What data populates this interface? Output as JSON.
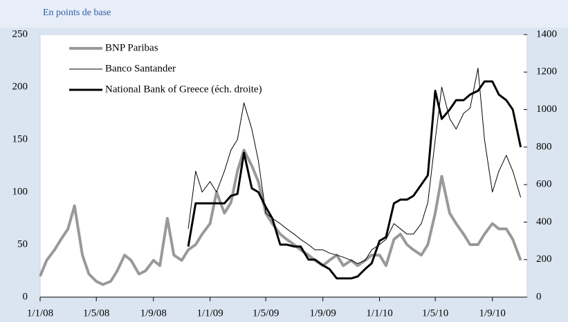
{
  "chart_data": {
    "type": "line",
    "title": "En points de base",
    "xlim": [
      "2008-01-01",
      "2010-11-15"
    ],
    "xticks": [
      {
        "value": "2008-01-01",
        "label": "1/1/08"
      },
      {
        "value": "2008-05-01",
        "label": "1/5/08"
      },
      {
        "value": "2008-09-01",
        "label": "1/9/08"
      },
      {
        "value": "2009-01-01",
        "label": "1/1/09"
      },
      {
        "value": "2009-05-01",
        "label": "1/5/09"
      },
      {
        "value": "2009-09-01",
        "label": "1/9/09"
      },
      {
        "value": "2010-01-01",
        "label": "1/1/10"
      },
      {
        "value": "2010-05-01",
        "label": "1/5/10"
      },
      {
        "value": "2010-09-01",
        "label": "1/9/10"
      }
    ],
    "ylim": [
      0,
      250
    ],
    "yticks": [
      0,
      50,
      100,
      150,
      200,
      250
    ],
    "y2lim": [
      0,
      1400
    ],
    "y2ticks": [
      0,
      200,
      400,
      600,
      800,
      1000,
      1200,
      1400
    ],
    "legend": "upper left",
    "series": [
      {
        "name": "BNP Paribas",
        "color": "#999999",
        "width": 4,
        "x": [
          "2008-01-01",
          "2008-01-15",
          "2008-02-01",
          "2008-02-15",
          "2008-03-01",
          "2008-03-15",
          "2008-04-01",
          "2008-04-15",
          "2008-05-01",
          "2008-05-15",
          "2008-06-01",
          "2008-06-15",
          "2008-07-01",
          "2008-07-15",
          "2008-08-01",
          "2008-08-15",
          "2008-09-01",
          "2008-09-15",
          "2008-10-01",
          "2008-10-15",
          "2008-11-01",
          "2008-11-15",
          "2008-12-01",
          "2008-12-15",
          "2009-01-01",
          "2009-01-15",
          "2009-02-01",
          "2009-02-15",
          "2009-03-01",
          "2009-03-15",
          "2009-04-01",
          "2009-04-15",
          "2009-05-01",
          "2009-05-15",
          "2009-06-01",
          "2009-06-15",
          "2009-07-01",
          "2009-07-15",
          "2009-08-01",
          "2009-08-15",
          "2009-09-01",
          "2009-09-15",
          "2009-10-01",
          "2009-10-15",
          "2009-11-01",
          "2009-11-15",
          "2009-12-01",
          "2009-12-15",
          "2010-01-01",
          "2010-01-15",
          "2010-02-01",
          "2010-02-15",
          "2010-03-01",
          "2010-03-15",
          "2010-04-01",
          "2010-04-15",
          "2010-05-01",
          "2010-05-15",
          "2010-06-01",
          "2010-06-15",
          "2010-07-01",
          "2010-07-15",
          "2010-08-01",
          "2010-08-15",
          "2010-09-01",
          "2010-09-15",
          "2010-10-01",
          "2010-10-15",
          "2010-11-01"
        ],
        "values": [
          20,
          35,
          45,
          55,
          65,
          87,
          40,
          22,
          15,
          12,
          15,
          25,
          40,
          35,
          22,
          25,
          35,
          30,
          75,
          40,
          35,
          45,
          50,
          60,
          70,
          100,
          80,
          90,
          120,
          140,
          125,
          110,
          80,
          70,
          60,
          55,
          50,
          45,
          40,
          35,
          30,
          35,
          40,
          30,
          35,
          30,
          35,
          40,
          40,
          30,
          55,
          60,
          50,
          45,
          40,
          50,
          80,
          115,
          80,
          70,
          60,
          50,
          50,
          60,
          70,
          65,
          65,
          55,
          35
        ]
      },
      {
        "name": "Banco Santander",
        "color": "#000000",
        "width": 1,
        "x": [
          "2008-11-15",
          "2008-12-01",
          "2008-12-15",
          "2009-01-01",
          "2009-01-15",
          "2009-02-01",
          "2009-02-15",
          "2009-03-01",
          "2009-03-15",
          "2009-04-01",
          "2009-04-15",
          "2009-05-01",
          "2009-05-15",
          "2009-06-01",
          "2009-06-15",
          "2009-07-01",
          "2009-07-15",
          "2009-08-01",
          "2009-08-15",
          "2009-09-01",
          "2009-09-15",
          "2009-10-01",
          "2009-10-15",
          "2009-11-01",
          "2009-11-15",
          "2009-12-01",
          "2009-12-15",
          "2010-01-01",
          "2010-01-15",
          "2010-02-01",
          "2010-02-15",
          "2010-03-01",
          "2010-03-15",
          "2010-04-01",
          "2010-04-15",
          "2010-05-01",
          "2010-05-15",
          "2010-06-01",
          "2010-06-15",
          "2010-07-01",
          "2010-07-15",
          "2010-08-01",
          "2010-08-15",
          "2010-09-01",
          "2010-09-15",
          "2010-10-01",
          "2010-10-15",
          "2010-11-01"
        ],
        "values": [
          65,
          120,
          100,
          110,
          100,
          120,
          140,
          150,
          185,
          160,
          130,
          80,
          75,
          70,
          65,
          60,
          55,
          50,
          45,
          45,
          42,
          40,
          38,
          35,
          32,
          35,
          45,
          50,
          55,
          70,
          65,
          60,
          60,
          70,
          90,
          150,
          200,
          170,
          160,
          175,
          180,
          218,
          150,
          100,
          120,
          135,
          120,
          95
        ]
      },
      {
        "name": "National Bank of Greece (éch. droite)",
        "color": "#000000",
        "width": 3,
        "axis": "y2",
        "x": [
          "2008-11-15",
          "2008-12-01",
          "2008-12-15",
          "2009-01-01",
          "2009-01-15",
          "2009-02-01",
          "2009-02-15",
          "2009-03-01",
          "2009-03-15",
          "2009-04-01",
          "2009-04-15",
          "2009-05-01",
          "2009-05-15",
          "2009-06-01",
          "2009-06-15",
          "2009-07-01",
          "2009-07-15",
          "2009-08-01",
          "2009-08-15",
          "2009-09-01",
          "2009-09-15",
          "2009-10-01",
          "2009-10-15",
          "2009-11-01",
          "2009-11-15",
          "2009-12-01",
          "2009-12-15",
          "2010-01-01",
          "2010-01-15",
          "2010-02-01",
          "2010-02-15",
          "2010-03-01",
          "2010-03-15",
          "2010-04-01",
          "2010-04-15",
          "2010-05-01",
          "2010-05-15",
          "2010-06-01",
          "2010-06-15",
          "2010-07-01",
          "2010-07-15",
          "2010-08-01",
          "2010-08-15",
          "2010-09-01",
          "2010-09-15",
          "2010-10-01",
          "2010-10-15",
          "2010-11-01"
        ],
        "values": [
          270,
          500,
          500,
          500,
          500,
          500,
          540,
          550,
          770,
          580,
          560,
          480,
          420,
          280,
          280,
          270,
          270,
          200,
          200,
          170,
          150,
          100,
          100,
          100,
          110,
          150,
          180,
          300,
          320,
          500,
          520,
          520,
          540,
          600,
          650,
          1100,
          950,
          1000,
          1050,
          1050,
          1080,
          1100,
          1150,
          1150,
          1080,
          1050,
          1000,
          800
        ]
      }
    ]
  }
}
